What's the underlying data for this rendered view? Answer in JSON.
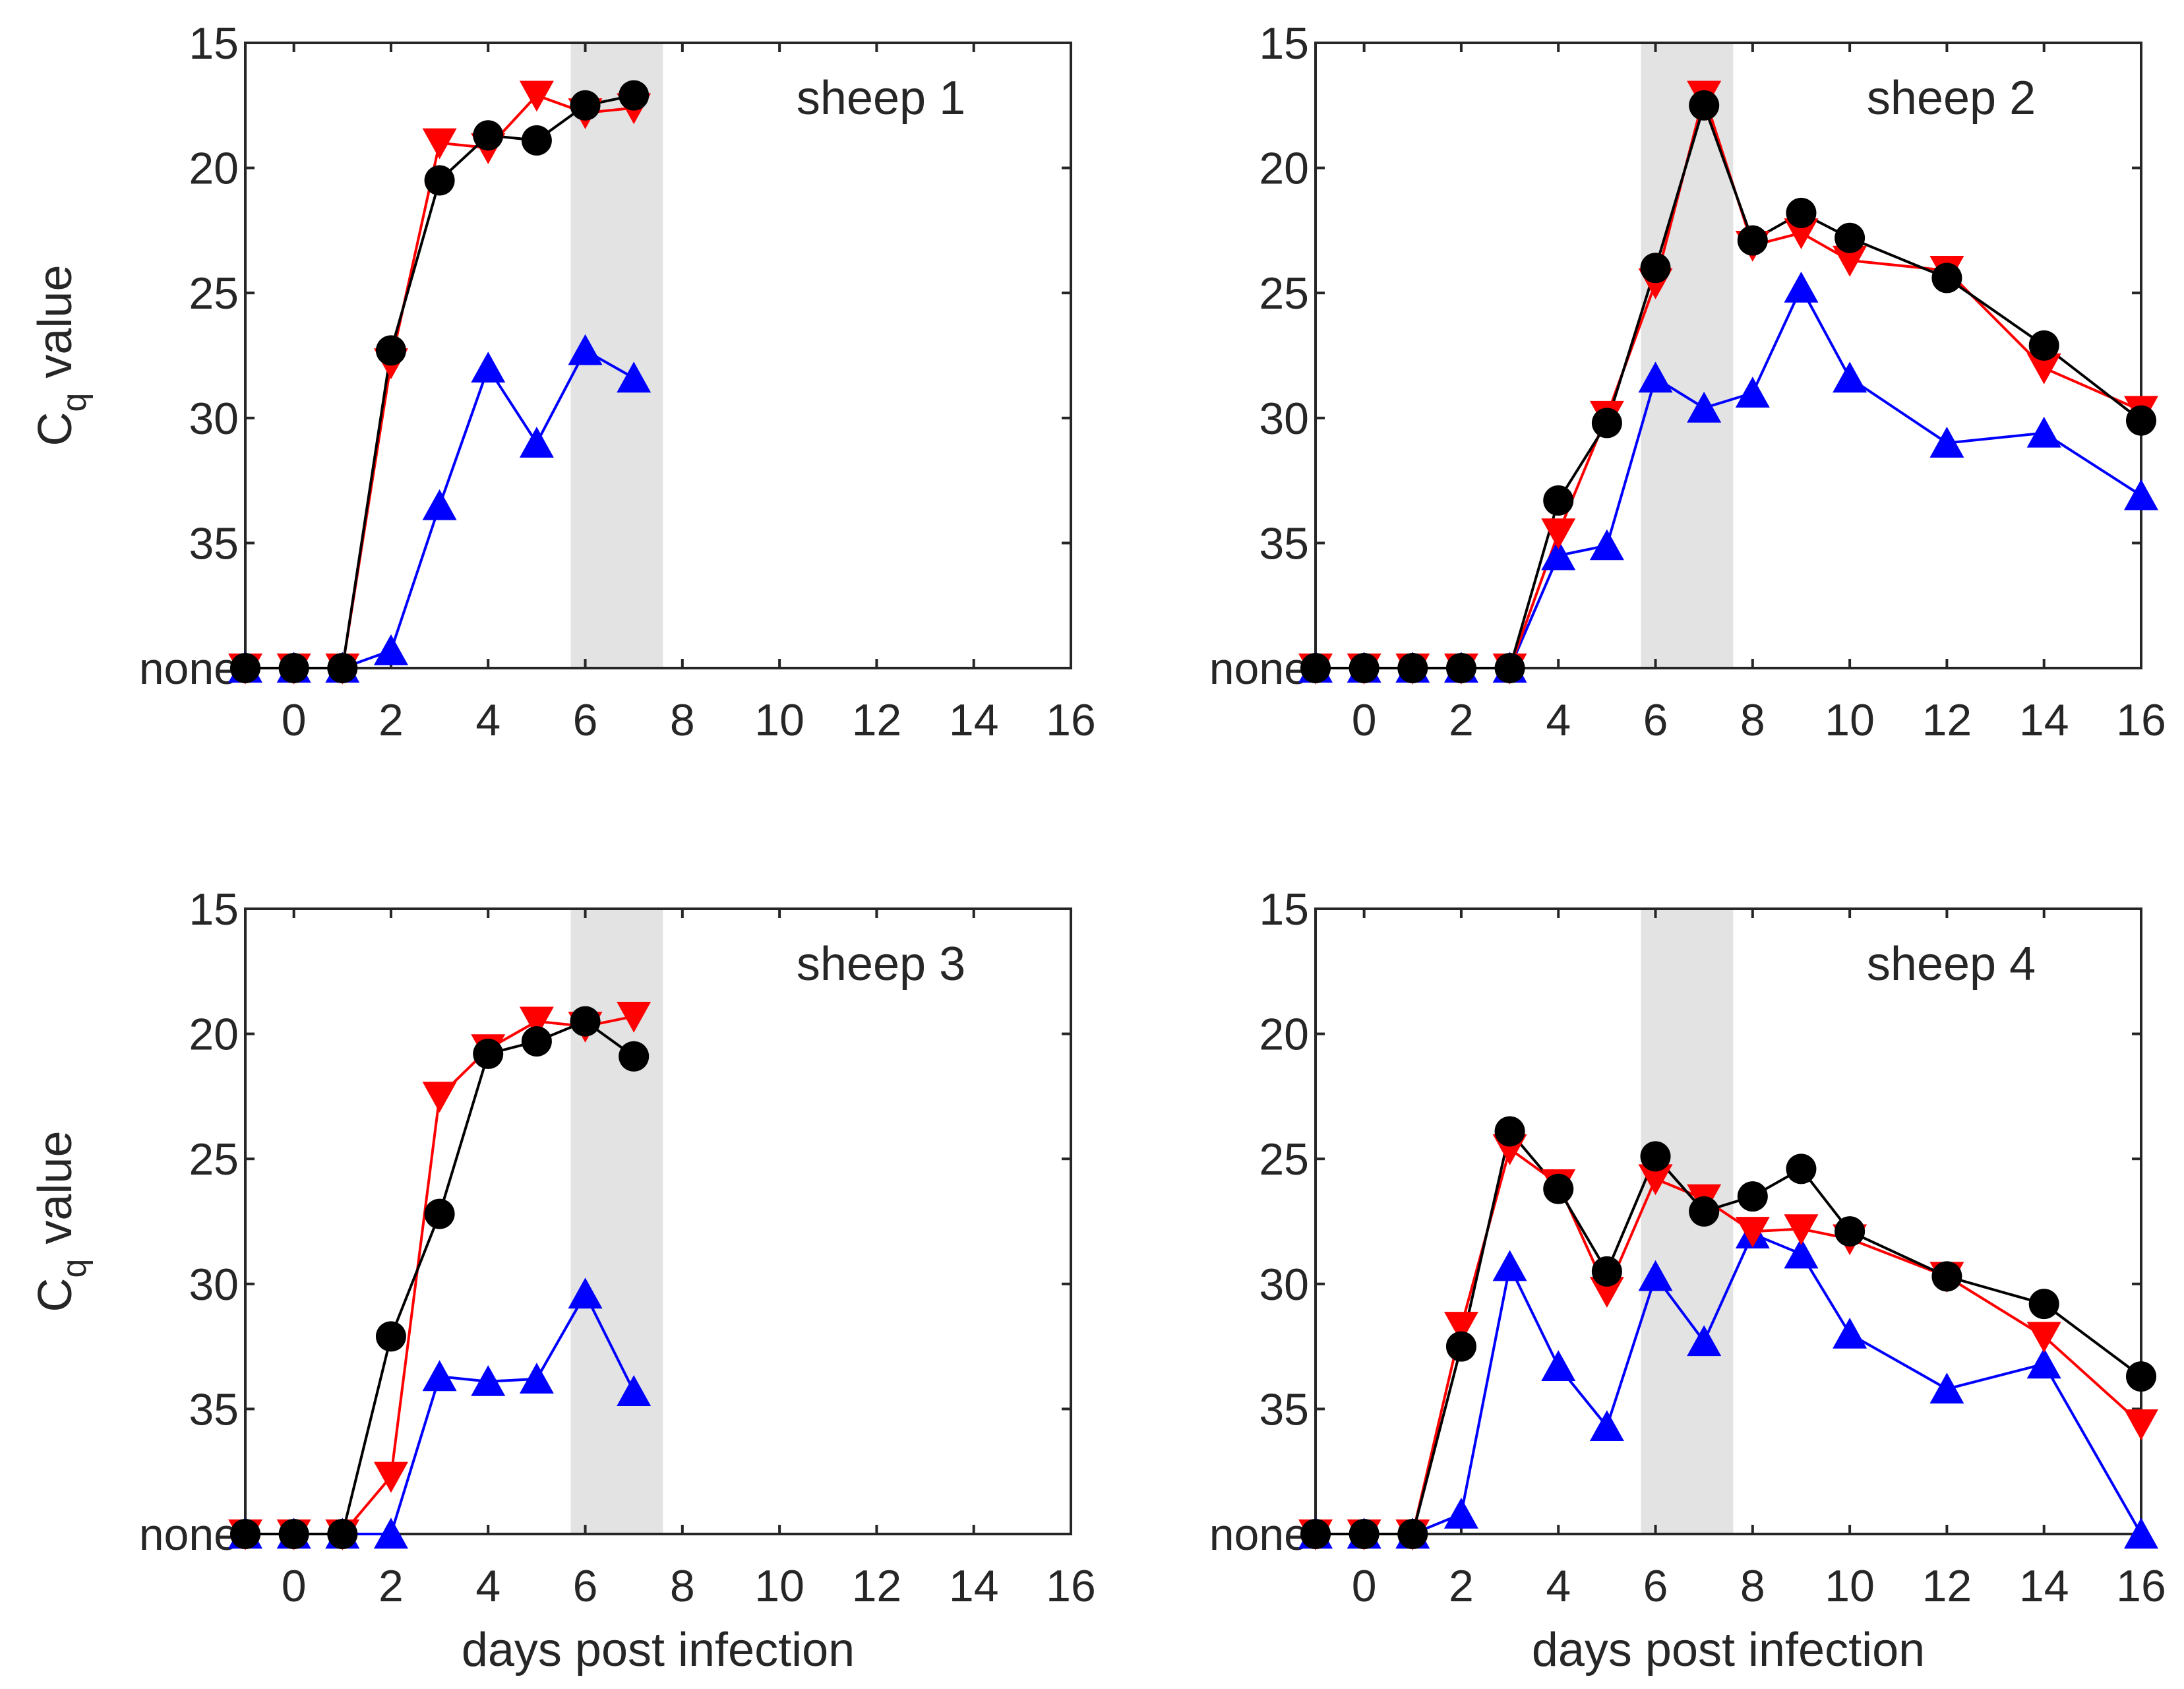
{
  "chart_data": [
    {
      "type": "line",
      "title": "sheep 1",
      "xlabel": "",
      "ylabel": "C_q value",
      "ylabel_main": "C",
      "ylabel_sub": "q",
      "ylabel_rest": "value",
      "xlim": [
        -1,
        16
      ],
      "ylim": [
        15,
        40
      ],
      "y_reversed": true,
      "xticks": [
        0,
        2,
        4,
        6,
        8,
        10,
        12,
        14,
        16
      ],
      "xtick_labels": [
        "0",
        "2",
        "4",
        "6",
        "8",
        "10",
        "12",
        "14",
        "16"
      ],
      "yticks": [
        15,
        20,
        25,
        30,
        35,
        40
      ],
      "ytick_labels": [
        "15",
        "20",
        "25",
        "30",
        "35",
        "none"
      ],
      "shaded_x": [
        5.7,
        7.6
      ],
      "series": [
        {
          "name": "black circles",
          "color": "#000000",
          "marker": "circle",
          "x": [
            -1,
            0,
            1,
            2,
            3,
            4,
            5,
            6,
            7
          ],
          "y": [
            40,
            40,
            40,
            27.3,
            20.5,
            18.7,
            18.9,
            17.5,
            17.1
          ]
        },
        {
          "name": "red down-triangles",
          "color": "#ff0000",
          "marker": "triangle-down",
          "x": [
            -1,
            0,
            1,
            2,
            3,
            4,
            5,
            6,
            7
          ],
          "y": [
            40,
            40,
            40,
            27.8,
            19.0,
            19.2,
            17.1,
            17.8,
            17.6
          ]
        },
        {
          "name": "blue up-triangles",
          "color": "#0000ff",
          "marker": "triangle-up",
          "x": [
            -1,
            0,
            1,
            2,
            3,
            4,
            5,
            6,
            7
          ],
          "y": [
            40,
            40,
            40,
            39.3,
            33.5,
            28.0,
            31.0,
            27.3,
            28.4
          ]
        }
      ]
    },
    {
      "type": "line",
      "title": "sheep 2",
      "xlabel": "",
      "ylabel": "",
      "xlim": [
        -1,
        16
      ],
      "ylim": [
        15,
        40
      ],
      "y_reversed": true,
      "xticks": [
        0,
        2,
        4,
        6,
        8,
        10,
        12,
        14,
        16
      ],
      "xtick_labels": [
        "0",
        "2",
        "4",
        "6",
        "8",
        "10",
        "12",
        "14",
        "16"
      ],
      "yticks": [
        15,
        20,
        25,
        30,
        35,
        40
      ],
      "ytick_labels": [
        "15",
        "20",
        "25",
        "30",
        "35",
        "none"
      ],
      "shaded_x": [
        5.7,
        7.6
      ],
      "series": [
        {
          "name": "black circles",
          "color": "#000000",
          "marker": "circle",
          "x": [
            -1,
            0,
            1,
            2,
            3,
            4,
            5,
            6,
            7,
            8,
            9,
            10,
            12,
            14,
            16
          ],
          "y": [
            40,
            40,
            40,
            40,
            40,
            33.3,
            30.2,
            24.0,
            17.5,
            22.9,
            21.8,
            22.8,
            24.4,
            27.1,
            30.1
          ]
        },
        {
          "name": "red down-triangles",
          "color": "#ff0000",
          "marker": "triangle-down",
          "x": [
            -1,
            0,
            1,
            2,
            3,
            4,
            5,
            6,
            7,
            8,
            9,
            10,
            12,
            14,
            16
          ],
          "y": [
            40,
            40,
            40,
            40,
            40,
            34.6,
            29.9,
            24.6,
            17.1,
            23.1,
            22.6,
            23.7,
            24.1,
            28.0,
            29.7
          ]
        },
        {
          "name": "blue up-triangles",
          "color": "#0000ff",
          "marker": "triangle-up",
          "x": [
            -1,
            0,
            1,
            2,
            3,
            4,
            5,
            6,
            7,
            8,
            9,
            10,
            12,
            14,
            16
          ],
          "y": [
            40,
            40,
            40,
            40,
            40,
            35.5,
            35.1,
            28.4,
            29.6,
            29.0,
            24.8,
            28.4,
            31.0,
            30.6,
            33.1
          ]
        }
      ]
    },
    {
      "type": "line",
      "title": "sheep 3",
      "xlabel": "days post infection",
      "ylabel": "C_q value",
      "ylabel_main": "C",
      "ylabel_sub": "q",
      "ylabel_rest": "value",
      "xlim": [
        -1,
        16
      ],
      "ylim": [
        15,
        40
      ],
      "y_reversed": true,
      "xticks": [
        0,
        2,
        4,
        6,
        8,
        10,
        12,
        14,
        16
      ],
      "xtick_labels": [
        "0",
        "2",
        "4",
        "6",
        "8",
        "10",
        "12",
        "14",
        "16"
      ],
      "yticks": [
        15,
        20,
        25,
        30,
        35,
        40
      ],
      "ytick_labels": [
        "15",
        "20",
        "25",
        "30",
        "35",
        "none"
      ],
      "shaded_x": [
        5.7,
        7.6
      ],
      "series": [
        {
          "name": "black circles",
          "color": "#000000",
          "marker": "circle",
          "x": [
            -1,
            0,
            1,
            2,
            3,
            4,
            5,
            6,
            7
          ],
          "y": [
            40,
            40,
            40,
            32.1,
            27.2,
            20.8,
            20.3,
            19.5,
            20.9
          ]
        },
        {
          "name": "red down-triangles",
          "color": "#ff0000",
          "marker": "triangle-down",
          "x": [
            -1,
            0,
            1,
            2,
            3,
            4,
            5,
            6,
            7
          ],
          "y": [
            40,
            40,
            40,
            37.7,
            22.5,
            20.6,
            19.5,
            19.7,
            19.3
          ]
        },
        {
          "name": "blue up-triangles",
          "color": "#0000ff",
          "marker": "triangle-up",
          "x": [
            -1,
            0,
            1,
            2,
            3,
            4,
            5,
            6,
            7
          ],
          "y": [
            40,
            40,
            40,
            40,
            33.7,
            33.9,
            33.8,
            30.4,
            34.3
          ]
        }
      ]
    },
    {
      "type": "line",
      "title": "sheep 4",
      "xlabel": "days post infection",
      "ylabel": "",
      "xlim": [
        -1,
        16
      ],
      "ylim": [
        15,
        40
      ],
      "y_reversed": true,
      "xticks": [
        0,
        2,
        4,
        6,
        8,
        10,
        12,
        14,
        16
      ],
      "xtick_labels": [
        "0",
        "2",
        "4",
        "6",
        "8",
        "10",
        "12",
        "14",
        "16"
      ],
      "yticks": [
        15,
        20,
        25,
        30,
        35,
        40
      ],
      "ytick_labels": [
        "15",
        "20",
        "25",
        "30",
        "35",
        "none"
      ],
      "shaded_x": [
        5.7,
        7.6
      ],
      "series": [
        {
          "name": "black circles",
          "color": "#000000",
          "marker": "circle",
          "x": [
            -1,
            0,
            1,
            2,
            3,
            4,
            5,
            6,
            7,
            8,
            9,
            10,
            12,
            14,
            16
          ],
          "y": [
            40,
            40,
            40,
            32.5,
            23.9,
            26.2,
            29.5,
            24.9,
            27.1,
            26.5,
            25.4,
            27.9,
            29.7,
            30.8,
            33.7
          ]
        },
        {
          "name": "red down-triangles",
          "color": "#ff0000",
          "marker": "triangle-down",
          "x": [
            -1,
            0,
            1,
            2,
            3,
            4,
            5,
            6,
            7,
            8,
            9,
            10,
            12,
            14,
            16
          ],
          "y": [
            40,
            40,
            40,
            31.7,
            24.6,
            26.0,
            30.3,
            25.8,
            26.6,
            27.9,
            27.8,
            28.2,
            29.7,
            32.1,
            35.6
          ]
        },
        {
          "name": "blue up-triangles",
          "color": "#0000ff",
          "marker": "triangle-up",
          "x": [
            -1,
            0,
            1,
            2,
            3,
            4,
            5,
            6,
            7,
            8,
            9,
            10,
            12,
            14,
            16
          ],
          "y": [
            40,
            40,
            40,
            39.2,
            29.3,
            33.3,
            35.7,
            29.7,
            32.3,
            28.0,
            28.8,
            32.0,
            34.2,
            33.2,
            40
          ]
        }
      ]
    }
  ]
}
